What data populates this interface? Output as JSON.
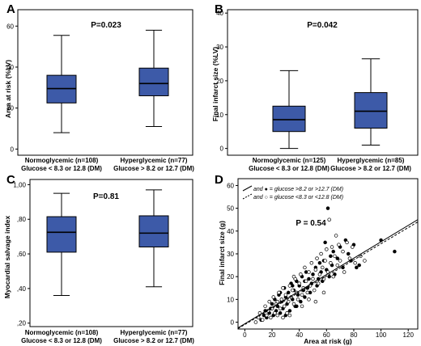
{
  "colors": {
    "box_fill": "#3d5aa8",
    "frame": "#000000",
    "point": "#000000"
  },
  "chart_data": [
    {
      "panel": "A",
      "type": "box",
      "ylabel": "Area at risk (%LV)",
      "ylim": [
        -3,
        68
      ],
      "yticks": [
        0,
        20,
        40,
        60
      ],
      "ytick_labels": [
        "0",
        "20",
        "40",
        "60"
      ],
      "annotation": "P=0.023",
      "categories": [
        {
          "line1": "Normoglycemic (n=108)",
          "line2": "Glucose < 8.3 or 12.8 (DM)",
          "stats": {
            "whisker_low": 8,
            "q1": 22.5,
            "median": 29.5,
            "q3": 36,
            "whisker_high": 55.5
          }
        },
        {
          "line1": "Hyperglycemic (n=77)",
          "line2": "Glucose > 8.2 or 12.7 (DM)",
          "stats": {
            "whisker_low": 11,
            "q1": 26,
            "median": 32,
            "q3": 39.5,
            "whisker_high": 58
          }
        }
      ]
    },
    {
      "panel": "B",
      "type": "box",
      "ylabel": "Final infarct size (%LV)",
      "ylim": [
        -2,
        41
      ],
      "yticks": [
        0,
        10,
        20,
        30,
        40
      ],
      "ytick_labels": [
        "0",
        "10",
        "20",
        "30",
        "40"
      ],
      "annotation": "P=0.042",
      "categories": [
        {
          "line1": "Normoglycemic (n=125)",
          "line2": "Glucose < 8.3 or 12.8 (DM)",
          "stats": {
            "whisker_low": 0,
            "q1": 5,
            "median": 8.5,
            "q3": 12.5,
            "whisker_high": 23
          }
        },
        {
          "line1": "Hyperglycemic (n=85)",
          "line2": "Glucose > 8.2 or 12.7 (DM)",
          "stats": {
            "whisker_low": 1,
            "q1": 6,
            "median": 11,
            "q3": 16.5,
            "whisker_high": 26.5
          }
        }
      ]
    },
    {
      "panel": "C",
      "type": "box",
      "ylabel": "Myocardial salvage index",
      "ylim": [
        0.18,
        1.03
      ],
      "yticks": [
        0.2,
        0.4,
        0.6,
        0.8,
        1.0
      ],
      "ytick_labels": [
        ",20",
        ",40",
        ",60",
        ",80",
        "1,00"
      ],
      "annotation": "P=0.81",
      "categories": [
        {
          "line1": "Normoglycemic (n=108)",
          "line2": "Glucose < 8.3 or 12.8 (DM)",
          "stats": {
            "whisker_low": 0.36,
            "q1": 0.61,
            "median": 0.725,
            "q3": 0.815,
            "whisker_high": 0.95
          }
        },
        {
          "line1": "Hyperglycemic (n=77)",
          "line2": "Glucose > 8.2 or 12.7 (DM)",
          "stats": {
            "whisker_low": 0.41,
            "q1": 0.64,
            "median": 0.72,
            "q3": 0.82,
            "whisker_high": 0.97
          }
        }
      ]
    },
    {
      "panel": "D",
      "type": "scatter",
      "xlabel": "Area at risk (g)",
      "ylabel": "Final infarct size (g)",
      "xlim": [
        -5,
        127
      ],
      "ylim": [
        -3,
        63
      ],
      "xticks": [
        0,
        20,
        40,
        60,
        80,
        100,
        120
      ],
      "yticks": [
        0,
        10,
        20,
        30,
        40,
        50,
        60
      ],
      "annotation": "P = 0.54",
      "legend": [
        {
          "line_style": "solid",
          "marker": "filled",
          "text": "and ● = glucose >8.2 or >12.7 (DM)"
        },
        {
          "line_style": "dashed",
          "marker": "open",
          "text": "and ○ = glucose <8.3 or <12.8 (DM)"
        }
      ],
      "fits": [
        {
          "style": "solid",
          "x0": -5,
          "y0": -2.5,
          "x1": 127,
          "y1": 45
        },
        {
          "style": "dashed",
          "x0": -5,
          "y0": -2.8,
          "x1": 127,
          "y1": 44
        }
      ],
      "series": [
        {
          "marker": "filled",
          "points": [
            [
              12,
              1
            ],
            [
              14,
              3
            ],
            [
              15,
              5
            ],
            [
              16,
              2
            ],
            [
              18,
              4
            ],
            [
              19,
              6
            ],
            [
              20,
              8
            ],
            [
              21,
              3
            ],
            [
              22,
              10
            ],
            [
              23,
              5
            ],
            [
              24,
              7
            ],
            [
              25,
              12
            ],
            [
              26,
              4
            ],
            [
              27,
              9
            ],
            [
              28,
              6
            ],
            [
              29,
              15
            ],
            [
              30,
              11
            ],
            [
              31,
              8
            ],
            [
              32,
              13
            ],
            [
              33,
              5
            ],
            [
              34,
              17
            ],
            [
              35,
              10
            ],
            [
              36,
              14
            ],
            [
              37,
              7
            ],
            [
              38,
              18
            ],
            [
              39,
              12
            ],
            [
              40,
              16
            ],
            [
              41,
              9
            ],
            [
              42,
              20
            ],
            [
              43,
              14
            ],
            [
              44,
              11
            ],
            [
              45,
              22
            ],
            [
              46,
              15
            ],
            [
              47,
              19
            ],
            [
              48,
              13
            ],
            [
              49,
              17
            ],
            [
              50,
              21
            ],
            [
              52,
              24
            ],
            [
              53,
              16
            ],
            [
              54,
              19
            ],
            [
              55,
              26
            ],
            [
              56,
              22
            ],
            [
              57,
              18
            ],
            [
              58,
              27
            ],
            [
              59,
              35
            ],
            [
              60,
              23
            ],
            [
              61,
              50
            ],
            [
              62,
              20
            ],
            [
              63,
              29
            ],
            [
              64,
              25
            ],
            [
              65,
              31
            ],
            [
              66,
              21
            ],
            [
              68,
              28
            ],
            [
              70,
              33
            ],
            [
              72,
              24
            ],
            [
              74,
              36
            ],
            [
              76,
              30
            ],
            [
              78,
              27
            ],
            [
              80,
              34
            ],
            [
              82,
              24
            ],
            [
              84,
              25
            ],
            [
              100,
              36
            ],
            [
              110,
              31
            ],
            [
              35,
              16
            ],
            [
              26,
              13
            ],
            [
              38,
              7
            ],
            [
              44,
              18
            ],
            [
              30,
              3
            ]
          ]
        },
        {
          "marker": "open",
          "points": [
            [
              8,
              0
            ],
            [
              10,
              2
            ],
            [
              11,
              4
            ],
            [
              13,
              1
            ],
            [
              15,
              7
            ],
            [
              16,
              3
            ],
            [
              17,
              5
            ],
            [
              18,
              9
            ],
            [
              19,
              2
            ],
            [
              20,
              6
            ],
            [
              21,
              11
            ],
            [
              22,
              4
            ],
            [
              23,
              8
            ],
            [
              24,
              3
            ],
            [
              25,
              13
            ],
            [
              26,
              6
            ],
            [
              27,
              10
            ],
            [
              28,
              15
            ],
            [
              29,
              7
            ],
            [
              30,
              12
            ],
            [
              31,
              4
            ],
            [
              32,
              9
            ],
            [
              33,
              16
            ],
            [
              34,
              11
            ],
            [
              35,
              14
            ],
            [
              36,
              8
            ],
            [
              37,
              19
            ],
            [
              38,
              13
            ],
            [
              39,
              10
            ],
            [
              40,
              17
            ],
            [
              41,
              21
            ],
            [
              42,
              12
            ],
            [
              43,
              15
            ],
            [
              44,
              24
            ],
            [
              45,
              18
            ],
            [
              46,
              13
            ],
            [
              47,
              22
            ],
            [
              48,
              16
            ],
            [
              49,
              26
            ],
            [
              50,
              19
            ],
            [
              51,
              14
            ],
            [
              52,
              23
            ],
            [
              53,
              28
            ],
            [
              54,
              17
            ],
            [
              55,
              21
            ],
            [
              56,
              30
            ],
            [
              57,
              24
            ],
            [
              58,
              19
            ],
            [
              59,
              27
            ],
            [
              60,
              32
            ],
            [
              61,
              22
            ],
            [
              62,
              45
            ],
            [
              63,
              26
            ],
            [
              64,
              33
            ],
            [
              65,
              20
            ],
            [
              66,
              29
            ],
            [
              67,
              38
            ],
            [
              68,
              25
            ],
            [
              69,
              34
            ],
            [
              70,
              27
            ],
            [
              72,
              31
            ],
            [
              73,
              22
            ],
            [
              75,
              35
            ],
            [
              77,
              28
            ],
            [
              79,
              33
            ],
            [
              81,
              26
            ],
            [
              85,
              29
            ],
            [
              88,
              27
            ],
            [
              28,
              2
            ],
            [
              33,
              3
            ],
            [
              42,
              7
            ],
            [
              47,
              10
            ],
            [
              52,
              9
            ],
            [
              58,
              13
            ],
            [
              36,
              20
            ],
            [
              24,
              9
            ]
          ]
        }
      ]
    }
  ]
}
